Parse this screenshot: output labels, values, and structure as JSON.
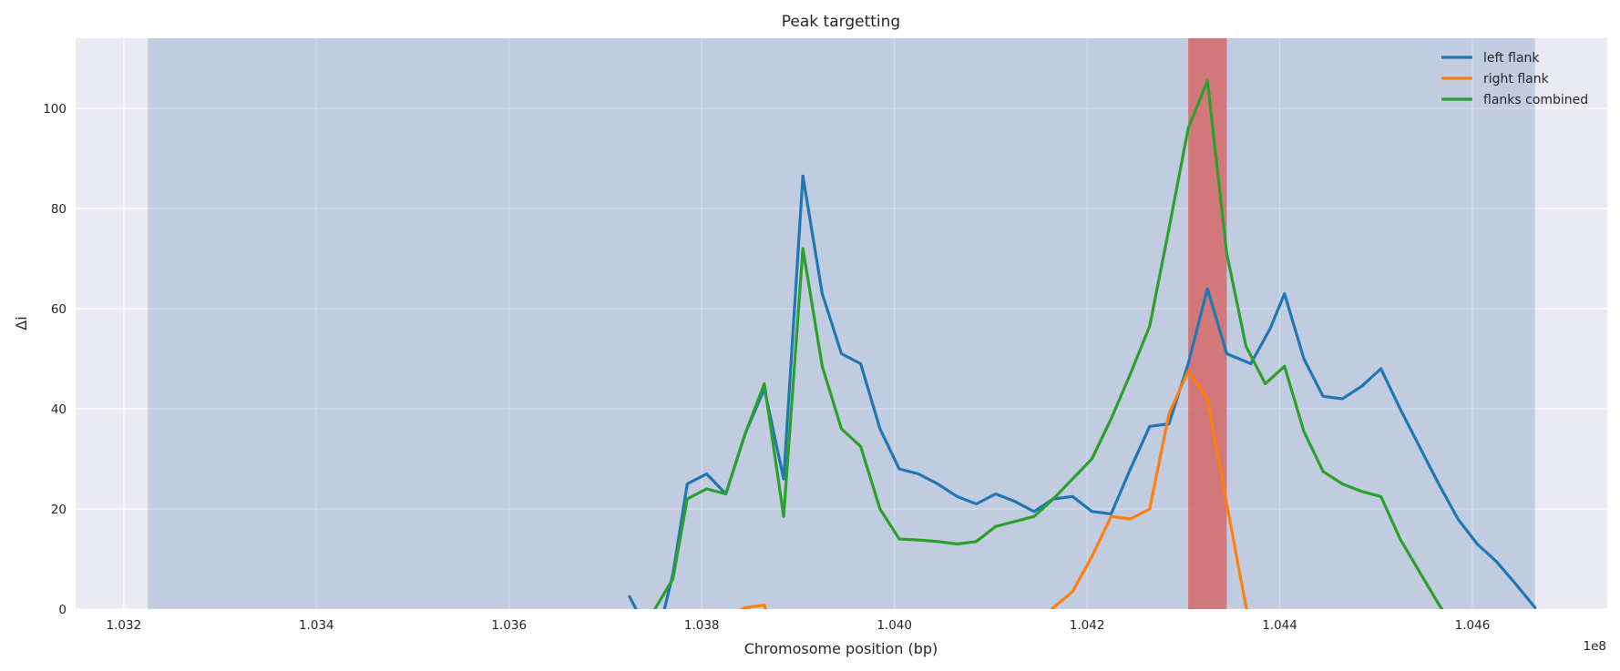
{
  "chart_data": {
    "type": "line",
    "title": "Peak targetting",
    "xlabel": "Chromosome position (bp)",
    "ylabel": "Δi",
    "x_offset_label": "1e8",
    "xlim": [
      103150000,
      104740000
    ],
    "ylim": [
      0,
      114
    ],
    "xticks": [
      103200000,
      103400000,
      103600000,
      103800000,
      104000000,
      104200000,
      104400000,
      104600000
    ],
    "xtick_labels": [
      "1.032",
      "1.034",
      "1.036",
      "1.038",
      "1.040",
      "1.042",
      "1.044",
      "1.046"
    ],
    "yticks": [
      0,
      20,
      40,
      60,
      80,
      100
    ],
    "ytick_labels": [
      "0",
      "20",
      "40",
      "60",
      "80",
      "100"
    ],
    "grid": true,
    "legend_position": "top-right",
    "shaded_region": {
      "x": [
        103225000,
        104665000
      ],
      "color": "#4c72b0"
    },
    "highlight_region": {
      "x": [
        104305000,
        104345000
      ],
      "color": "#d9534f"
    },
    "series": [
      {
        "name": "left flank",
        "color": "#1f77b4",
        "points": [
          [
            103725000,
            2.5
          ],
          [
            103740000,
            -3
          ],
          [
            103755000,
            -5
          ],
          [
            103770000,
            7
          ],
          [
            103785000,
            25
          ],
          [
            103805000,
            27
          ],
          [
            103825000,
            23
          ],
          [
            103845000,
            35
          ],
          [
            103865000,
            44
          ],
          [
            103885000,
            26
          ],
          [
            103905000,
            86.5
          ],
          [
            103925000,
            63
          ],
          [
            103945000,
            51
          ],
          [
            103965000,
            49
          ],
          [
            103985000,
            36
          ],
          [
            104005000,
            28
          ],
          [
            104025000,
            27
          ],
          [
            104045000,
            25
          ],
          [
            104065000,
            22.5
          ],
          [
            104085000,
            21
          ],
          [
            104105000,
            23
          ],
          [
            104125000,
            21.5
          ],
          [
            104145000,
            19.5
          ],
          [
            104165000,
            22
          ],
          [
            104185000,
            22.5
          ],
          [
            104205000,
            19.5
          ],
          [
            104225000,
            19
          ],
          [
            104245000,
            28
          ],
          [
            104265000,
            36.5
          ],
          [
            104285000,
            37
          ],
          [
            104305000,
            49
          ],
          [
            104325000,
            64
          ],
          [
            104345000,
            51
          ],
          [
            104370000,
            49
          ],
          [
            104390000,
            56
          ],
          [
            104405000,
            63
          ],
          [
            104425000,
            50
          ],
          [
            104445000,
            42.5
          ],
          [
            104465000,
            42
          ],
          [
            104485000,
            44.5
          ],
          [
            104505000,
            48
          ],
          [
            104525000,
            40
          ],
          [
            104545000,
            32.5
          ],
          [
            104565000,
            25
          ],
          [
            104585000,
            18
          ],
          [
            104605000,
            13
          ],
          [
            104625000,
            9.5
          ],
          [
            104645000,
            5
          ],
          [
            104665000,
            0.3
          ]
        ]
      },
      {
        "name": "right flank",
        "color": "#ff7f0e",
        "points": [
          [
            103825000,
            -2
          ],
          [
            103845000,
            0.3
          ],
          [
            103865000,
            0.8
          ],
          [
            103870000,
            -2
          ],
          [
            104155000,
            -2
          ],
          [
            104165000,
            0.3
          ],
          [
            104185000,
            3.5
          ],
          [
            104205000,
            10.5
          ],
          [
            104225000,
            18.5
          ],
          [
            104245000,
            18
          ],
          [
            104265000,
            20
          ],
          [
            104285000,
            39
          ],
          [
            104305000,
            47.5
          ],
          [
            104325000,
            42
          ],
          [
            104345000,
            21
          ],
          [
            104365000,
            0.5
          ],
          [
            104370000,
            -2
          ]
        ]
      },
      {
        "name": "flanks combined",
        "color": "#2ca02c",
        "points": [
          [
            103745000,
            -2
          ],
          [
            103770000,
            6
          ],
          [
            103785000,
            22
          ],
          [
            103805000,
            24
          ],
          [
            103825000,
            23
          ],
          [
            103845000,
            35
          ],
          [
            103865000,
            45
          ],
          [
            103885000,
            18.5
          ],
          [
            103905000,
            72
          ],
          [
            103925000,
            48.5
          ],
          [
            103945000,
            36
          ],
          [
            103965000,
            32.5
          ],
          [
            103985000,
            20
          ],
          [
            104005000,
            14
          ],
          [
            104025000,
            13.8
          ],
          [
            104045000,
            13.5
          ],
          [
            104065000,
            13
          ],
          [
            104085000,
            13.5
          ],
          [
            104105000,
            16.5
          ],
          [
            104125000,
            17.5
          ],
          [
            104145000,
            18.5
          ],
          [
            104165000,
            22
          ],
          [
            104185000,
            26
          ],
          [
            104205000,
            30
          ],
          [
            104225000,
            38
          ],
          [
            104245000,
            47
          ],
          [
            104265000,
            56.5
          ],
          [
            104285000,
            76
          ],
          [
            104305000,
            96
          ],
          [
            104325000,
            105.5
          ],
          [
            104345000,
            71
          ],
          [
            104365000,
            52.5
          ],
          [
            104385000,
            45
          ],
          [
            104405000,
            48.5
          ],
          [
            104425000,
            35.5
          ],
          [
            104445000,
            27.5
          ],
          [
            104465000,
            25
          ],
          [
            104485000,
            23.5
          ],
          [
            104505000,
            22.5
          ],
          [
            104525000,
            14
          ],
          [
            104545000,
            7.5
          ],
          [
            104565000,
            1
          ],
          [
            104575000,
            -2
          ]
        ]
      }
    ]
  }
}
